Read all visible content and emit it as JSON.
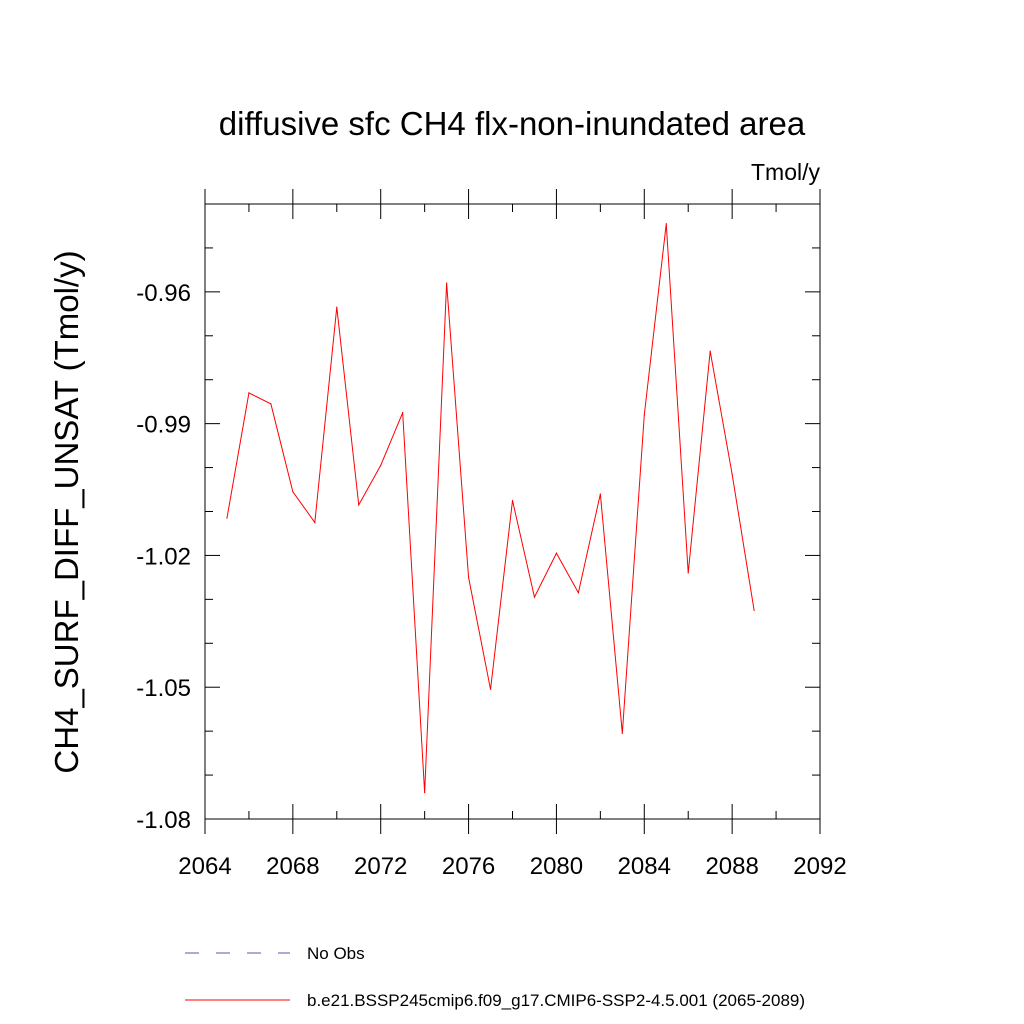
{
  "chart_data": {
    "type": "line",
    "title": "diffusive sfc CH4 flx-non-inundated area",
    "units": "Tmol/y",
    "xlabel": "",
    "ylabel": "CH4_SURF_DIFF_UNSAT  (Tmol/y)",
    "xlim": [
      2064,
      2092
    ],
    "ylim": [
      -1.08,
      -0.94
    ],
    "x_major_ticks": [
      2064,
      2068,
      2072,
      2076,
      2080,
      2084,
      2088,
      2092
    ],
    "x_tick_labels": [
      "2064",
      "2068",
      "2072",
      "2076",
      "2080",
      "2084",
      "2088",
      "2092"
    ],
    "x_minor_ticks": [
      2066,
      2070,
      2074,
      2078,
      2082,
      2086,
      2090
    ],
    "y_major_ticks": [
      -1.08,
      -1.05,
      -1.02,
      -0.99,
      -0.96
    ],
    "y_tick_labels": [
      "-1.08",
      "-1.05",
      "-1.02",
      "-0.99",
      "-0.96"
    ],
    "y_minor_ticks": [
      -1.07,
      -1.06,
      -1.04,
      -1.03,
      -1.01,
      -1.0,
      -0.98,
      -0.97,
      -0.95
    ],
    "grid": false,
    "series": [
      {
        "name": "b.e21.BSSP245cmip6.f09_g17.CMIP6-SSP2-4.5.001 (2065-2089)",
        "color": "#ff0000",
        "dash": "solid",
        "x": [
          2065,
          2066,
          2067,
          2068,
          2069,
          2070,
          2071,
          2072,
          2073,
          2074,
          2075,
          2076,
          2077,
          2078,
          2079,
          2080,
          2081,
          2082,
          2083,
          2084,
          2085,
          2086,
          2087,
          2088,
          2089
        ],
        "y": [
          -1.0115,
          -0.983,
          -0.9855,
          -1.0055,
          -1.0125,
          -0.9635,
          -1.0085,
          -0.9995,
          -0.9875,
          -1.074,
          -0.958,
          -1.025,
          -1.0505,
          -1.0075,
          -1.0295,
          -1.0195,
          -1.0285,
          -1.006,
          -1.0605,
          -0.988,
          -0.9445,
          -1.024,
          -0.9735,
          -1.0015,
          -1.0325
        ]
      }
    ],
    "legend": {
      "placement": "bottom",
      "entries": [
        {
          "label": "No Obs",
          "color": "#5555bb",
          "dash": "dashed"
        },
        {
          "label": "b.e21.BSSP245cmip6.f09_g17.CMIP6-SSP2-4.5.001 (2065-2089)",
          "color": "#ff0000",
          "dash": "solid"
        }
      ]
    }
  }
}
